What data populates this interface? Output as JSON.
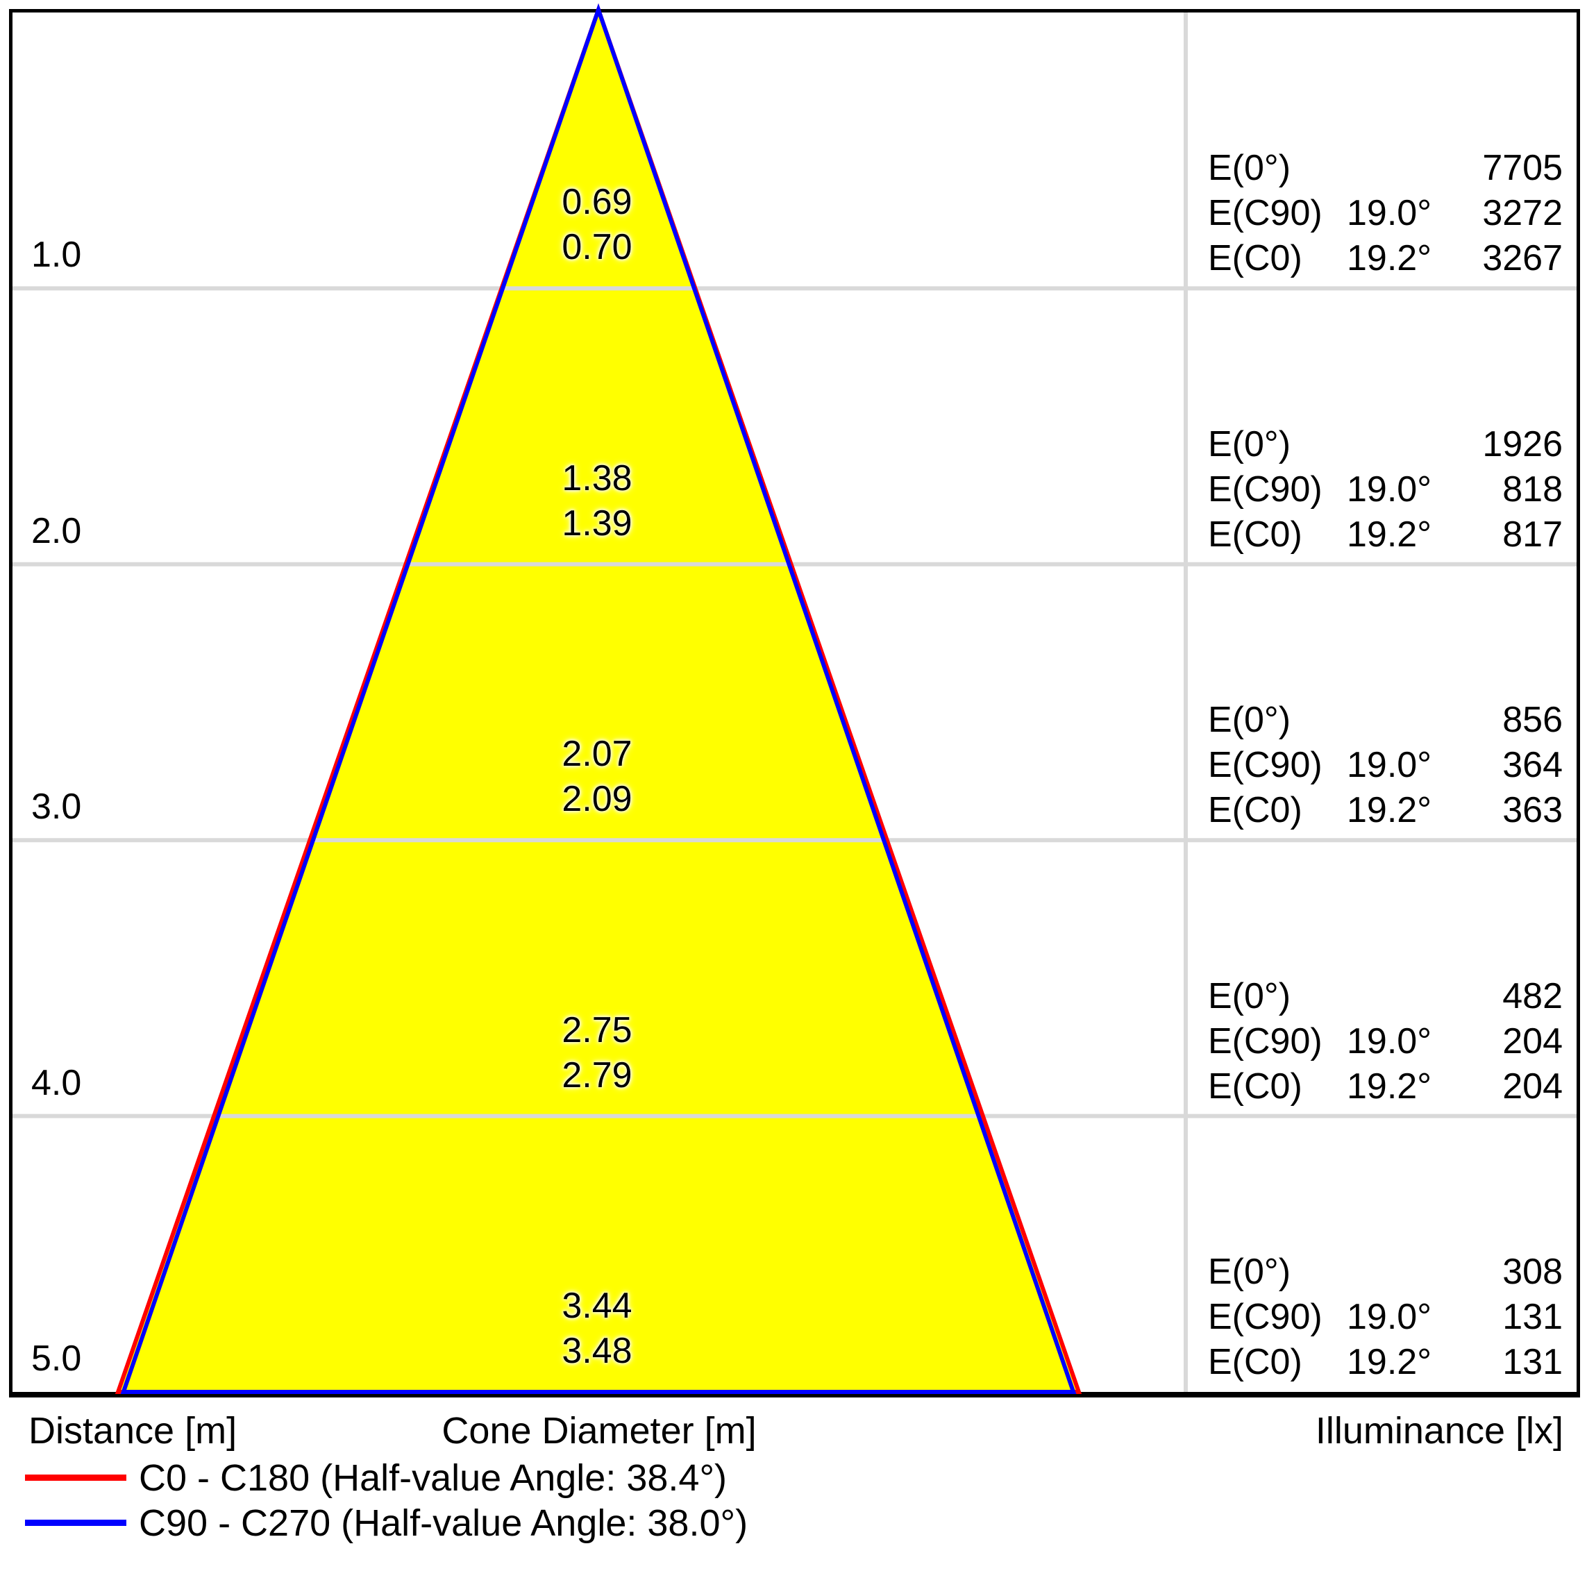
{
  "footer": {
    "distance_label": "Distance [m]",
    "cone_diameter_label": "Cone Diameter [m]",
    "illuminance_label": "Illuminance [lx]"
  },
  "legend": [
    {
      "label": "C0 - C180 (Half-value Angle: 38.4°)",
      "color": "#ff0000"
    },
    {
      "label": "C90 - C270 (Half-value Angle: 38.0°)",
      "color": "#0000ff"
    }
  ],
  "colors": {
    "cone_fill": "#ffff00",
    "grid": "#d9d9d9",
    "frame": "#000000"
  },
  "rows": [
    {
      "distance": "1.0",
      "cone_c90": "0.69",
      "cone_c0": "0.70",
      "lines": [
        {
          "label": "E(0°)",
          "angle": "",
          "value": "7705"
        },
        {
          "label": "E(C90)",
          "angle": "19.0°",
          "value": "3272"
        },
        {
          "label": "E(C0)",
          "angle": "19.2°",
          "value": "3267"
        }
      ]
    },
    {
      "distance": "2.0",
      "cone_c90": "1.38",
      "cone_c0": "1.39",
      "lines": [
        {
          "label": "E(0°)",
          "angle": "",
          "value": "1926"
        },
        {
          "label": "E(C90)",
          "angle": "19.0°",
          "value": "818"
        },
        {
          "label": "E(C0)",
          "angle": "19.2°",
          "value": "817"
        }
      ]
    },
    {
      "distance": "3.0",
      "cone_c90": "2.07",
      "cone_c0": "2.09",
      "lines": [
        {
          "label": "E(0°)",
          "angle": "",
          "value": "856"
        },
        {
          "label": "E(C90)",
          "angle": "19.0°",
          "value": "364"
        },
        {
          "label": "E(C0)",
          "angle": "19.2°",
          "value": "363"
        }
      ]
    },
    {
      "distance": "4.0",
      "cone_c90": "2.75",
      "cone_c0": "2.79",
      "lines": [
        {
          "label": "E(0°)",
          "angle": "",
          "value": "482"
        },
        {
          "label": "E(C90)",
          "angle": "19.0°",
          "value": "204"
        },
        {
          "label": "E(C0)",
          "angle": "19.2°",
          "value": "204"
        }
      ]
    },
    {
      "distance": "5.0",
      "cone_c90": "3.44",
      "cone_c0": "3.48",
      "lines": [
        {
          "label": "E(0°)",
          "angle": "",
          "value": "308"
        },
        {
          "label": "E(C90)",
          "angle": "19.0°",
          "value": "131"
        },
        {
          "label": "E(C0)",
          "angle": "19.2°",
          "value": "131"
        }
      ]
    }
  ],
  "chart_data": {
    "type": "area",
    "subtype": "luminaire-light-cone-diagram",
    "distances_m": [
      1.0,
      2.0,
      3.0,
      4.0,
      5.0
    ],
    "series": [
      {
        "name": "C0 - C180",
        "half_value_angle_deg": 38.4,
        "color": "#ff0000",
        "cone_diameter_m": [
          0.7,
          1.39,
          2.09,
          2.79,
          3.48
        ]
      },
      {
        "name": "C90 - C270",
        "half_value_angle_deg": 38.0,
        "color": "#0000ff",
        "cone_diameter_m": [
          0.69,
          1.38,
          2.07,
          2.75,
          3.44
        ]
      }
    ],
    "illuminance_lx": [
      {
        "distance_m": 1.0,
        "E0": 7705,
        "EC90": 3272,
        "EC0": 3267
      },
      {
        "distance_m": 2.0,
        "E0": 1926,
        "EC90": 818,
        "EC0": 817
      },
      {
        "distance_m": 3.0,
        "E0": 856,
        "EC90": 364,
        "EC0": 363
      },
      {
        "distance_m": 4.0,
        "E0": 482,
        "EC90": 204,
        "EC0": 204
      },
      {
        "distance_m": 5.0,
        "E0": 308,
        "EC90": 131,
        "EC0": 131
      }
    ],
    "beam_measure_angles_deg": {
      "EC90": 19.0,
      "EC0": 19.2
    },
    "cone_fill_color": "#ffff00",
    "grid": true,
    "legend_position": "bottom-left",
    "ylim_m": [
      0,
      5
    ]
  }
}
